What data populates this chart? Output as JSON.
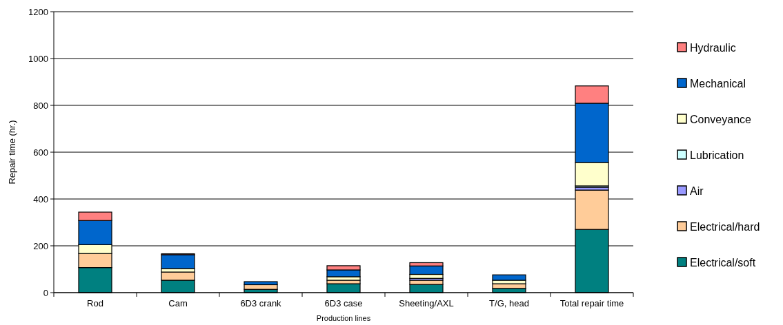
{
  "chart_data": {
    "type": "bar",
    "stacked": true,
    "xlabel": "Production lines",
    "ylabel": "Repair time (hr.)",
    "categories": [
      "Rod",
      "Cam",
      "6D3 crank",
      "6D3 case",
      "Sheeting/AXL",
      "T/G, head",
      "Total repair time"
    ],
    "series": [
      {
        "name": "Electrical/soft",
        "color": "#008080",
        "values": [
          107,
          53,
          14,
          38,
          35,
          18,
          270
        ]
      },
      {
        "name": "Electrical/hard",
        "color": "#ffcc99",
        "values": [
          60,
          35,
          20,
          15,
          18,
          20,
          168
        ]
      },
      {
        "name": "Air",
        "color": "#9999ff",
        "values": [
          0,
          0,
          0,
          0,
          8,
          0,
          12
        ]
      },
      {
        "name": "Lubrication",
        "color": "#ccffff",
        "values": [
          0,
          0,
          0,
          0,
          null,
          0,
          6
        ]
      },
      {
        "name": "Conveyance",
        "color": "#ffffcc",
        "values": [
          38,
          15,
          null,
          15,
          17,
          15,
          100
        ]
      },
      {
        "name": "Mechanical",
        "color": "#0066cc",
        "values": [
          103,
          59,
          13,
          29,
          36,
          23,
          253
        ]
      },
      {
        "name": "Hydraulic",
        "color": "#ff8080",
        "values": [
          36,
          4,
          0,
          18,
          14,
          0,
          74
        ]
      }
    ],
    "ylim": [
      0,
      1200
    ],
    "yticks": [
      0,
      200,
      400,
      600,
      800,
      1000,
      1200
    ],
    "grid": "y",
    "legend": "right"
  }
}
